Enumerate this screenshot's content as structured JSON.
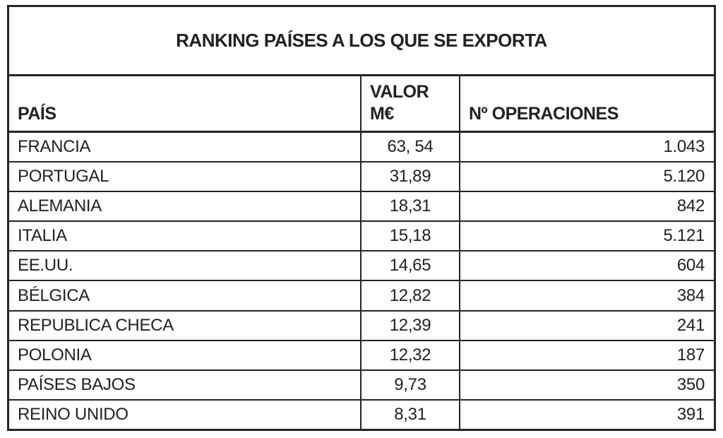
{
  "table": {
    "title": "RANKING PAÍSES A LOS QUE SE EXPORTA",
    "columns": {
      "pais": "PAÍS",
      "valor_line1": "VALOR",
      "valor_line2": "M€",
      "operaciones": "Nº OPERACIONES"
    },
    "rows": [
      {
        "pais": "FRANCIA",
        "valor": "63, 54",
        "operaciones": "1.043"
      },
      {
        "pais": "PORTUGAL",
        "valor": "31,89",
        "operaciones": "5.120"
      },
      {
        "pais": "ALEMANIA",
        "valor": "18,31",
        "operaciones": "842"
      },
      {
        "pais": "ITALIA",
        "valor": "15,18",
        "operaciones": "5.121"
      },
      {
        "pais": "EE.UU.",
        "valor": "14,65",
        "operaciones": "604"
      },
      {
        "pais": "BÉLGICA",
        "valor": "12,82",
        "operaciones": "384"
      },
      {
        "pais": "REPUBLICA CHECA",
        "valor": "12,39",
        "operaciones": "241"
      },
      {
        "pais": "POLONIA",
        "valor": "12,32",
        "operaciones": "187"
      },
      {
        "pais": "PAÍSES BAJOS",
        "valor": "9,73",
        "operaciones": "350"
      },
      {
        "pais": "REINO UNIDO",
        "valor": "8,31",
        "operaciones": "391"
      }
    ]
  },
  "colors": {
    "border": "#262324",
    "text": "#232021",
    "background": "#ffffff"
  },
  "chart_data": {
    "type": "table",
    "title": "RANKING PAÍSES A LOS QUE SE EXPORTA",
    "categories": [
      "FRANCIA",
      "PORTUGAL",
      "ALEMANIA",
      "ITALIA",
      "EE.UU.",
      "BÉLGICA",
      "REPUBLICA CHECA",
      "POLONIA",
      "PAÍSES BAJOS",
      "REINO UNIDO"
    ],
    "series": [
      {
        "name": "VALOR M€",
        "values": [
          63.54,
          31.89,
          18.31,
          15.18,
          14.65,
          12.82,
          12.39,
          12.32,
          9.73,
          8.31
        ]
      },
      {
        "name": "Nº OPERACIONES",
        "values": [
          1043,
          5120,
          842,
          5121,
          604,
          384,
          241,
          187,
          350,
          391
        ]
      }
    ]
  }
}
